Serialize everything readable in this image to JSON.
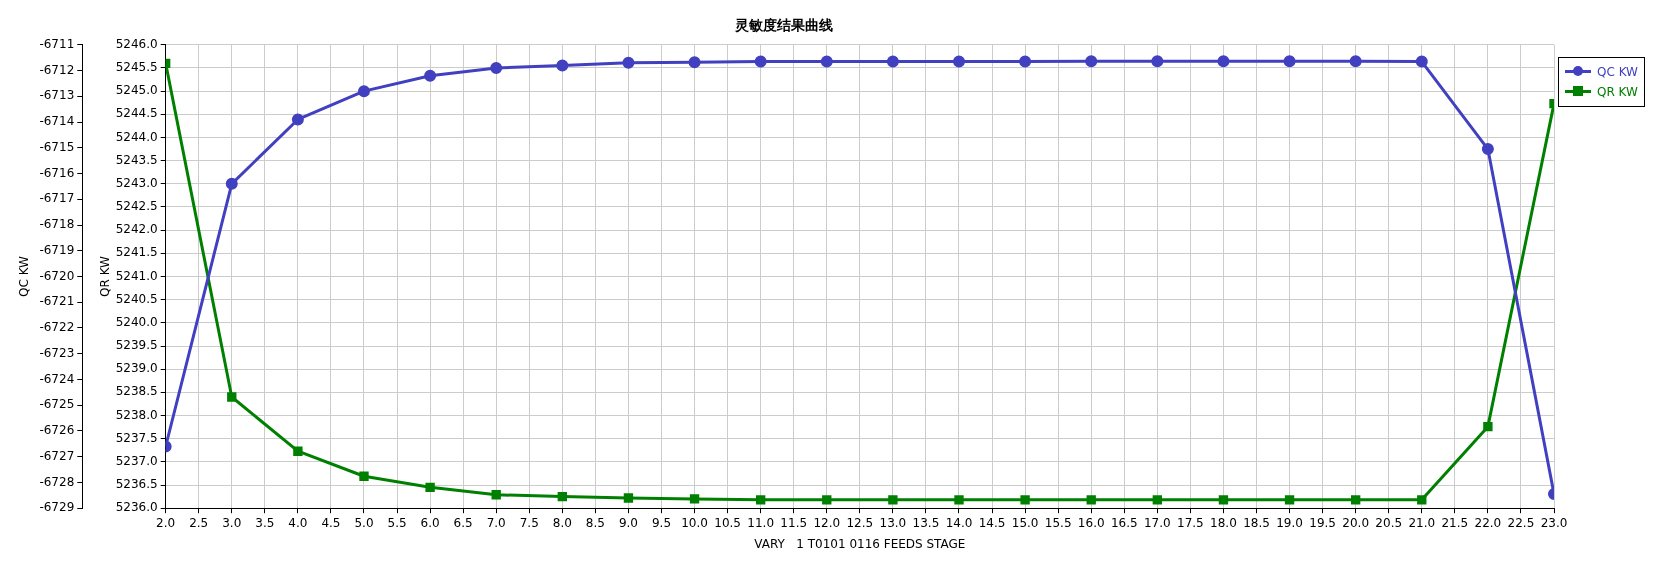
{
  "chart_data": {
    "type": "line",
    "title": "灵敏度结果曲线",
    "xlabel": "VARY   1 T0101 0116 FEEDS STAGE",
    "ylabel": "QC KW",
    "y2label": "QR KW",
    "x": [
      2,
      3,
      4,
      5,
      6,
      7,
      8,
      9,
      10,
      11,
      12,
      13,
      14,
      15,
      16,
      17,
      18,
      19,
      20,
      21,
      22,
      23
    ],
    "series": [
      {
        "name": "QC KW",
        "color": "#4040c0",
        "marker": "circle",
        "values": [
          -6726.6,
          -6716.4,
          -6713.9,
          -6712.8,
          -6712.2,
          -6711.9,
          -6711.8,
          -6711.7,
          -6711.68,
          -6711.65,
          -6711.65,
          -6711.65,
          -6711.65,
          -6711.65,
          -6711.64,
          -6711.64,
          -6711.64,
          -6711.64,
          -6711.64,
          -6711.65,
          -6715.05,
          -6728.45
        ]
      },
      {
        "name": "QR KW",
        "color": "#008000",
        "marker": "square",
        "axis": "y2",
        "values": [
          5245.6,
          5238.4,
          5237.23,
          5236.69,
          5236.45,
          5236.29,
          5236.25,
          5236.22,
          5236.2,
          5236.18,
          5236.18,
          5236.18,
          5236.18,
          5236.18,
          5236.18,
          5236.18,
          5236.18,
          5236.18,
          5236.18,
          5236.18,
          5237.76,
          5244.73
        ]
      }
    ],
    "xlim": [
      2,
      23
    ],
    "xticks": [
      {
        "value": 2,
        "label": "2.0"
      },
      {
        "value": 2.5,
        "label": "2.5"
      },
      {
        "value": 3,
        "label": "3.0"
      },
      {
        "value": 3.5,
        "label": "3.5"
      },
      {
        "value": 4,
        "label": "4.0"
      },
      {
        "value": 4.5,
        "label": "4.5"
      },
      {
        "value": 5,
        "label": "5.0"
      },
      {
        "value": 5.5,
        "label": "5.5"
      },
      {
        "value": 6,
        "label": "6.0"
      },
      {
        "value": 6.5,
        "label": "6.5"
      },
      {
        "value": 7,
        "label": "7.0"
      },
      {
        "value": 7.5,
        "label": "7.5"
      },
      {
        "value": 8,
        "label": "8.0"
      },
      {
        "value": 8.5,
        "label": "8.5"
      },
      {
        "value": 9,
        "label": "9.0"
      },
      {
        "value": 9.5,
        "label": "9.5"
      },
      {
        "value": 10,
        "label": "10.0"
      },
      {
        "value": 10.5,
        "label": "10.5"
      },
      {
        "value": 11,
        "label": "11.0"
      },
      {
        "value": 11.5,
        "label": "11.5"
      },
      {
        "value": 12,
        "label": "12.0"
      },
      {
        "value": 12.5,
        "label": "12.5"
      },
      {
        "value": 13,
        "label": "13.0"
      },
      {
        "value": 13.5,
        "label": "13.5"
      },
      {
        "value": 14,
        "label": "14.0"
      },
      {
        "value": 14.5,
        "label": "14.5"
      },
      {
        "value": 15,
        "label": "15.0"
      },
      {
        "value": 15.5,
        "label": "15.5"
      },
      {
        "value": 16,
        "label": "16.0"
      },
      {
        "value": 16.5,
        "label": "16.5"
      },
      {
        "value": 17,
        "label": "17.0"
      },
      {
        "value": 17.5,
        "label": "17.5"
      },
      {
        "value": 18,
        "label": "18.0"
      },
      {
        "value": 18.5,
        "label": "18.5"
      },
      {
        "value": 19,
        "label": "19.0"
      },
      {
        "value": 19.5,
        "label": "19.5"
      },
      {
        "value": 20,
        "label": "20.0"
      },
      {
        "value": 20.5,
        "label": "20.5"
      },
      {
        "value": 21,
        "label": "21.0"
      },
      {
        "value": 21.5,
        "label": "21.5"
      },
      {
        "value": 22,
        "label": "22.0"
      },
      {
        "value": 22.5,
        "label": "22.5"
      },
      {
        "value": 23,
        "label": "23.0"
      }
    ],
    "ylim": [
      -6729,
      -6711
    ],
    "yticks": [
      -6729,
      -6728,
      -6727,
      -6726,
      -6725,
      -6724,
      -6723,
      -6722,
      -6721,
      -6720,
      -6719,
      -6718,
      -6717,
      -6716,
      -6715,
      -6714,
      -6713,
      -6712,
      -6711
    ],
    "y2lim": [
      5236,
      5246
    ],
    "y2ticks": [
      {
        "value": 5236,
        "label": "5236.0"
      },
      {
        "value": 5236.5,
        "label": "5236.5"
      },
      {
        "value": 5237,
        "label": "5237.0"
      },
      {
        "value": 5237.5,
        "label": "5237.5"
      },
      {
        "value": 5238,
        "label": "5238.0"
      },
      {
        "value": 5238.5,
        "label": "5238.5"
      },
      {
        "value": 5239,
        "label": "5239.0"
      },
      {
        "value": 5239.5,
        "label": "5239.5"
      },
      {
        "value": 5240,
        "label": "5240.0"
      },
      {
        "value": 5240.5,
        "label": "5240.5"
      },
      {
        "value": 5241,
        "label": "5241.0"
      },
      {
        "value": 5241.5,
        "label": "5241.5"
      },
      {
        "value": 5242,
        "label": "5242.0"
      },
      {
        "value": 5242.5,
        "label": "5242.5"
      },
      {
        "value": 5243,
        "label": "5243.0"
      },
      {
        "value": 5243.5,
        "label": "5243.5"
      },
      {
        "value": 5244,
        "label": "5244.0"
      },
      {
        "value": 5244.5,
        "label": "5244.5"
      },
      {
        "value": 5245,
        "label": "5245.0"
      },
      {
        "value": 5245.5,
        "label": "5245.5"
      },
      {
        "value": 5246,
        "label": "5246.0"
      }
    ],
    "grid": true,
    "legend": "top right"
  }
}
